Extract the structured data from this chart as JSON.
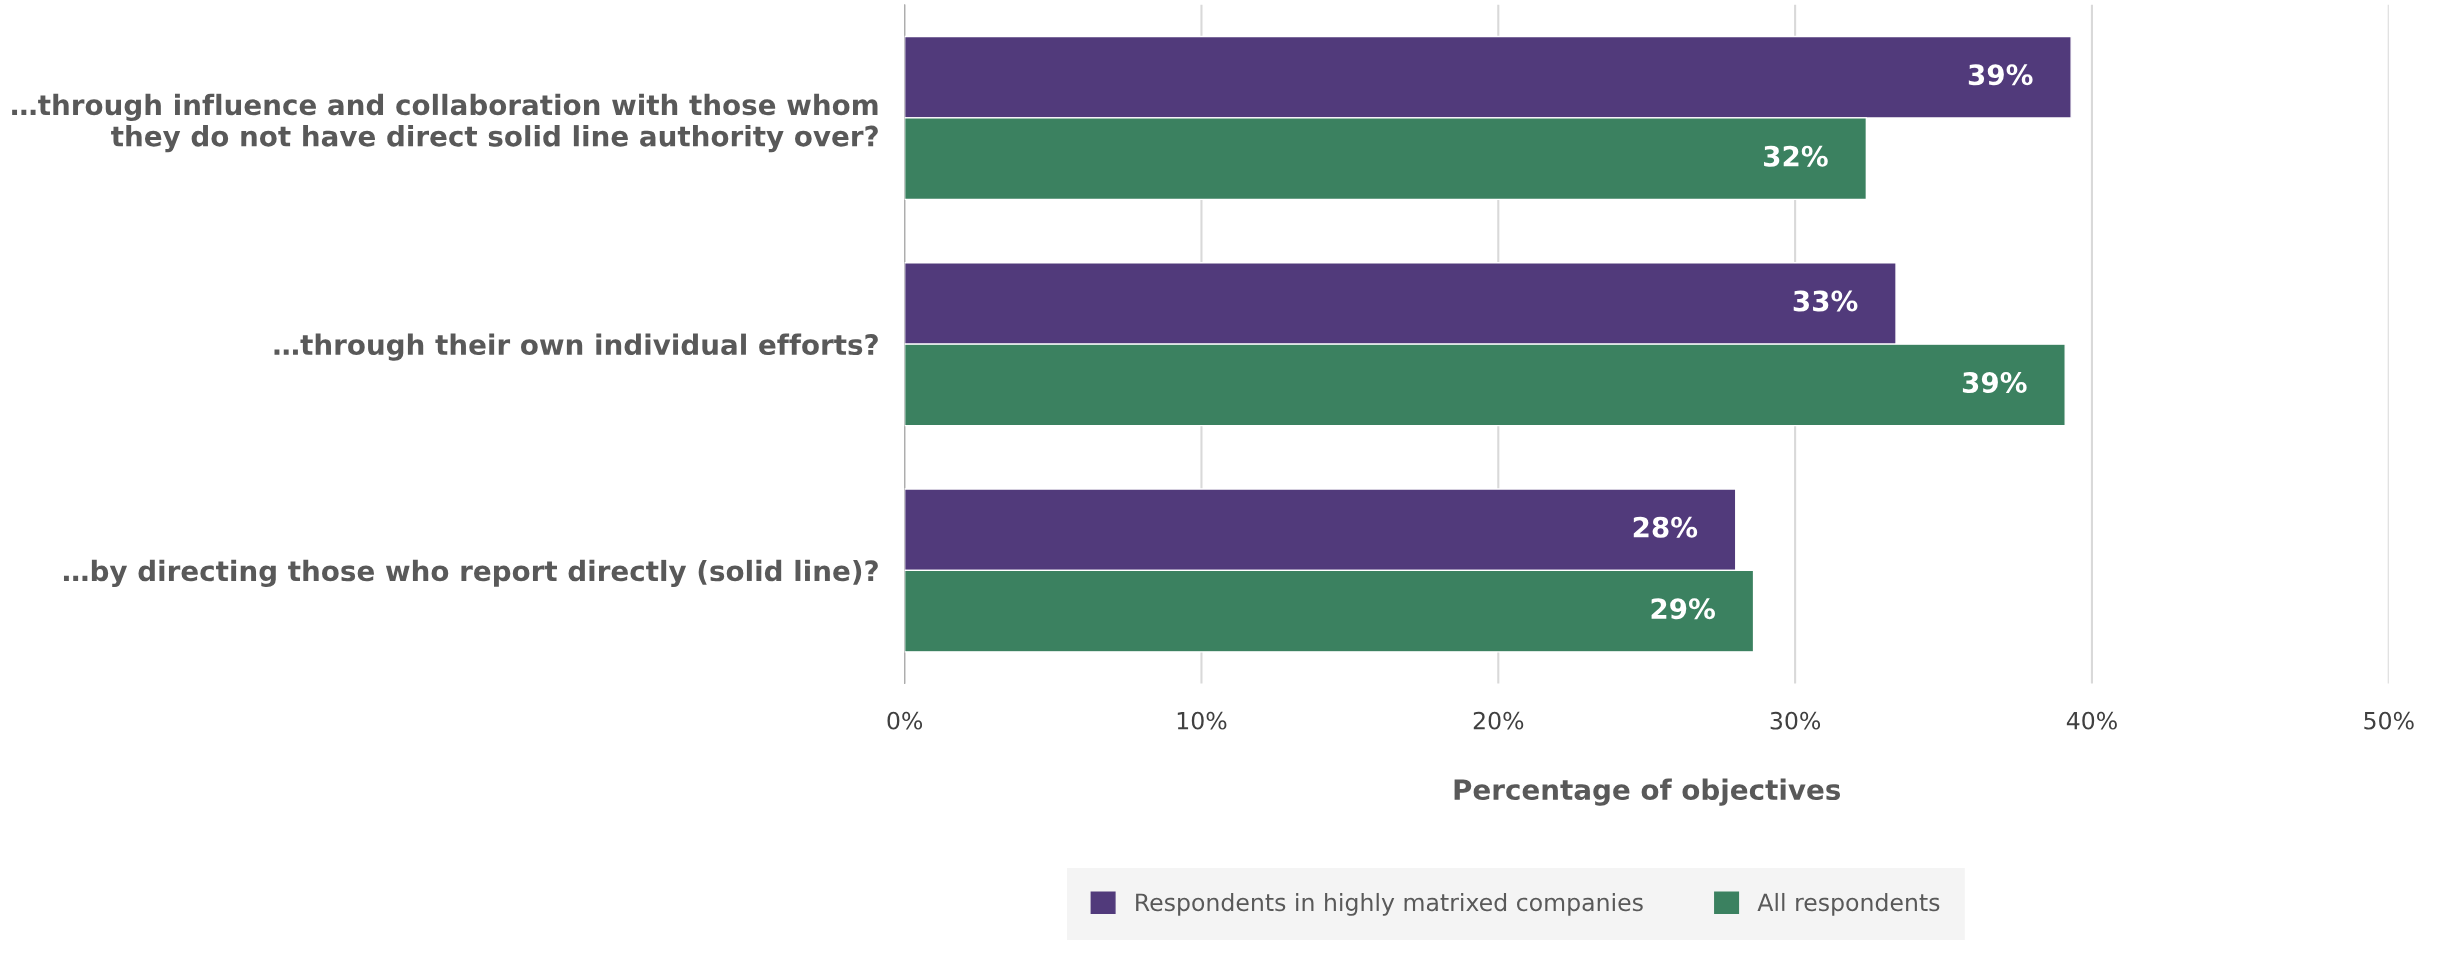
{
  "chart_data": {
    "type": "bar",
    "orientation": "horizontal",
    "categories": [
      "…through influence and collaboration with those whom\nthey do not have direct solid line authority over?",
      "…through their own individual efforts?",
      "…by directing those who report directly (solid line)?"
    ],
    "series": [
      {
        "name": "Respondents in highly matrixed companies",
        "color": "#513a7b",
        "values": [
          39.3,
          33.4,
          28.0
        ],
        "value_labels": [
          "39%",
          "33%",
          "28%"
        ]
      },
      {
        "name": "All respondents",
        "color": "#3b8160",
        "values": [
          32.4,
          39.1,
          28.6
        ],
        "value_labels": [
          "32%",
          "39%",
          "29%"
        ]
      }
    ],
    "xlim": [
      0,
      50
    ],
    "xticks": [
      {
        "value": 0,
        "label": "0%"
      },
      {
        "value": 10,
        "label": "10%"
      },
      {
        "value": 20,
        "label": "20%"
      },
      {
        "value": 30,
        "label": "30%"
      },
      {
        "value": 40,
        "label": "40%"
      },
      {
        "value": 50,
        "label": "50%"
      }
    ],
    "xlabel": "Percentage of objectives",
    "grid": "x",
    "legend": "bottom"
  }
}
